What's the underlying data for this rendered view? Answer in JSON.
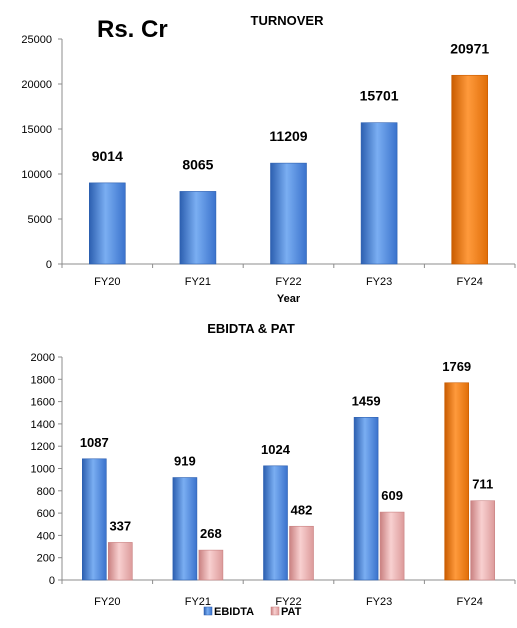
{
  "unit_label": "Rs. Cr",
  "colors": {
    "blue_light": "#7aaef2",
    "blue_mid": "#4a86e0",
    "blue_dark": "#2c5fb0",
    "orange_light": "#ff9a3c",
    "orange_mid": "#f07c10",
    "orange_dark": "#c95c00",
    "pink_light": "#f5c4c4",
    "pink_mid": "#e8a3a3",
    "pink_dark": "#c98080"
  },
  "chart_data": [
    {
      "type": "bar",
      "title": "TURNOVER",
      "xlabel": "Year",
      "ylabel": "",
      "categories": [
        "FY20",
        "FY21",
        "FY22",
        "FY23",
        "FY24"
      ],
      "values": [
        9014,
        8065,
        11209,
        15701,
        20971
      ],
      "value_labels": [
        "9014",
        "8065",
        "11209",
        "15701",
        "20971"
      ],
      "highlight_index": 4,
      "ylim": [
        0,
        25000
      ],
      "yticks": [
        0,
        5000,
        10000,
        15000,
        20000,
        25000
      ],
      "ytick_labels": [
        "0",
        "5000",
        "10000",
        "15000",
        "20000",
        "25000"
      ],
      "grid": false
    },
    {
      "type": "bar",
      "title": "EBIDTA & PAT",
      "xlabel": "",
      "ylabel": "",
      "categories": [
        "FY20",
        "FY21",
        "FY22",
        "FY23",
        "FY24"
      ],
      "series": [
        {
          "name": "EBIDTA",
          "values": [
            1087,
            919,
            1024,
            1459,
            1769
          ],
          "value_labels": [
            "1087",
            "919",
            "1024",
            "1459",
            "1769"
          ]
        },
        {
          "name": "PAT",
          "values": [
            337,
            268,
            482,
            609,
            711
          ],
          "value_labels": [
            "337",
            "268",
            "482",
            "609",
            "711"
          ]
        }
      ],
      "highlight_index": 4,
      "ylim": [
        0,
        2000
      ],
      "yticks": [
        0,
        200,
        400,
        600,
        800,
        1000,
        1200,
        1400,
        1600,
        1800,
        2000
      ],
      "ytick_labels": [
        "0",
        "200",
        "400",
        "600",
        "800",
        "1000",
        "1200",
        "1400",
        "1600",
        "1800",
        "2000"
      ],
      "legend_position": "bottom",
      "grid": false
    }
  ]
}
